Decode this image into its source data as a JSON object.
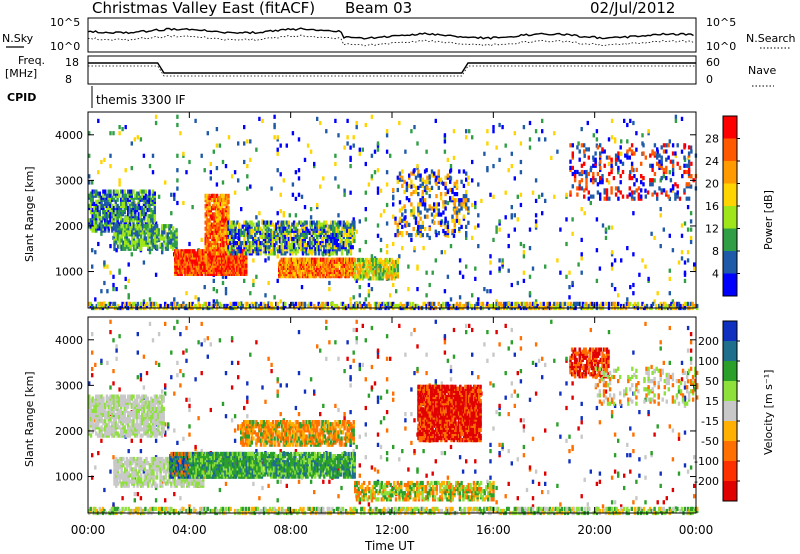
{
  "header": {
    "title": "Christmas Valley East (fitACF)",
    "beam": "Beam 03",
    "date": "02/Jul/2012"
  },
  "panels": {
    "nsky_label": "N.Sky",
    "nsearch_label": "N.Search",
    "freq_label_line1": "Freq.",
    "freq_label_line2": "[MHz]",
    "nave_label": "Nave",
    "cpid_label": "CPID",
    "cpid_value": "themis 3300 IF",
    "noise_ticks_left": [
      "10^5",
      "10^0"
    ],
    "noise_ticks_right": [
      "10^5",
      "10^0"
    ],
    "freq_ticks_left": [
      "18",
      "8"
    ],
    "nave_ticks_right": [
      "60",
      "0"
    ]
  },
  "chart_data": [
    {
      "type": "heatmap",
      "name": "power",
      "ylabel": "Slant Range [km]",
      "xlabel": "",
      "x_ticks": [
        "00:00",
        "04:00",
        "08:00",
        "12:00",
        "16:00",
        "20:00",
        "00:00"
      ],
      "y_ticks": [
        1000,
        2000,
        3000,
        4000
      ],
      "ylim": [
        200,
        4500
      ],
      "xlim_hours": [
        0,
        24
      ],
      "colorbar": {
        "label": "Power [dB]",
        "ticks": [
          "28",
          "24",
          "20",
          "16",
          "12",
          "8",
          "4"
        ],
        "colors": [
          "#ff0000",
          "#ff5a00",
          "#ff9a00",
          "#ffd400",
          "#9ee61a",
          "#2f9e44",
          "#1e5aa8",
          "#0000ff"
        ]
      }
    },
    {
      "type": "heatmap",
      "name": "velocity",
      "ylabel": "Slant Range [km]",
      "xlabel": "Time UT",
      "x_ticks": [
        "00:00",
        "04:00",
        "08:00",
        "12:00",
        "16:00",
        "20:00",
        "00:00"
      ],
      "y_ticks": [
        1000,
        2000,
        3000,
        4000
      ],
      "ylim": [
        200,
        4500
      ],
      "xlim_hours": [
        0,
        24
      ],
      "colorbar": {
        "label": "Velocity [m s⁻¹]",
        "ticks": [
          "200",
          "100",
          "50",
          "15",
          "-15",
          "-50",
          "-100",
          "-200"
        ],
        "colors": [
          "#1030c0",
          "#1e6e8c",
          "#2aa02a",
          "#8ee03a",
          "#c8c8c8",
          "#ffb000",
          "#ff7000",
          "#ff3000",
          "#e00000"
        ]
      }
    }
  ]
}
